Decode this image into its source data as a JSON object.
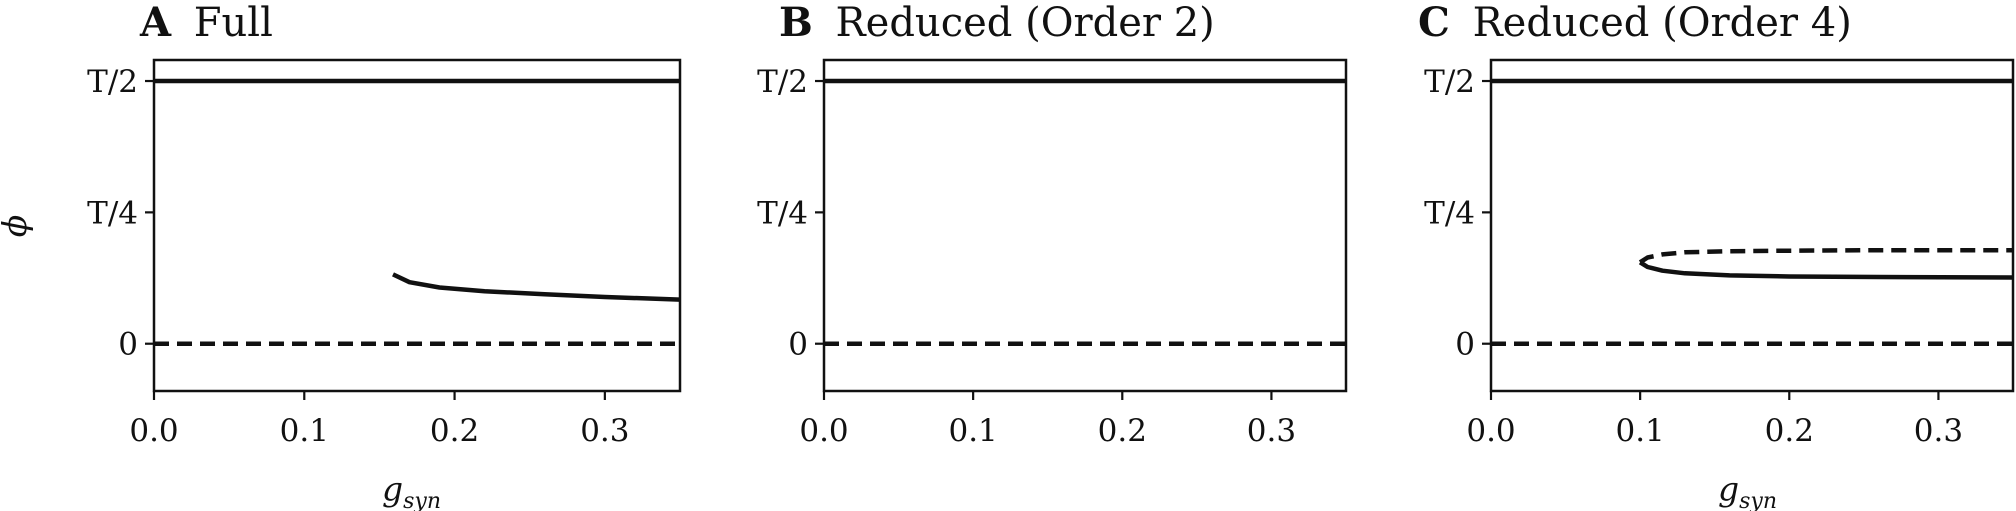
{
  "figure": {
    "panels": [
      {
        "letter": "A",
        "title": "Full"
      },
      {
        "letter": "B",
        "title": "Reduced (Order 2)"
      },
      {
        "letter": "C",
        "title": "Reduced (Order 4)"
      }
    ],
    "ylabel": "ϕ",
    "xlabel_main": "g",
    "xlabel_sub": "syn"
  },
  "chart_data": [
    {
      "type": "line",
      "title": "A Full",
      "xlabel": "g_syn",
      "ylabel": "ϕ",
      "xlim": [
        0.0,
        0.35
      ],
      "ylim": [
        -0.09,
        0.54
      ],
      "xticks": [
        0.0,
        0.1,
        0.2,
        0.3
      ],
      "xtick_labels": [
        "0.0",
        "0.1",
        "0.2",
        "0.3"
      ],
      "yticks": [
        0,
        0.25,
        0.5
      ],
      "ytick_labels": [
        "0",
        "T/4",
        "T/2"
      ],
      "show_xlabel": true,
      "show_ylabel": true,
      "grid": false,
      "series": [
        {
          "style": "solid",
          "x": [
            0.0,
            0.35
          ],
          "y": [
            0.5,
            0.5
          ]
        },
        {
          "style": "dashed",
          "x": [
            0.0,
            0.35
          ],
          "y": [
            0.0,
            0.0
          ]
        },
        {
          "style": "solid",
          "x": [
            0.159,
            0.17,
            0.19,
            0.22,
            0.26,
            0.3,
            0.35
          ],
          "y": [
            0.132,
            0.117,
            0.107,
            0.1,
            0.094,
            0.089,
            0.084
          ]
        }
      ]
    },
    {
      "type": "line",
      "title": "B Reduced (Order 2)",
      "xlabel": "",
      "ylabel": "",
      "xlim": [
        0.0,
        0.35
      ],
      "ylim": [
        -0.09,
        0.54
      ],
      "xticks": [
        0.0,
        0.1,
        0.2,
        0.3
      ],
      "xtick_labels": [
        "0.0",
        "0.1",
        "0.2",
        "0.3"
      ],
      "yticks": [
        0,
        0.25,
        0.5
      ],
      "ytick_labels": [
        "0",
        "T/4",
        "T/2"
      ],
      "show_xlabel": false,
      "show_ylabel": false,
      "grid": false,
      "series": [
        {
          "style": "solid",
          "x": [
            0.0,
            0.35
          ],
          "y": [
            0.5,
            0.5
          ]
        },
        {
          "style": "dashed",
          "x": [
            0.0,
            0.35
          ],
          "y": [
            0.0,
            0.0
          ]
        }
      ]
    },
    {
      "type": "line",
      "title": "C Reduced (Order 4)",
      "xlabel": "g_syn",
      "ylabel": "",
      "xlim": [
        0.0,
        0.35
      ],
      "ylim": [
        -0.09,
        0.54
      ],
      "xticks": [
        0.0,
        0.1,
        0.2,
        0.3
      ],
      "xtick_labels": [
        "0.0",
        "0.1",
        "0.2",
        "0.3"
      ],
      "yticks": [
        0,
        0.25,
        0.5
      ],
      "ytick_labels": [
        "0",
        "T/4",
        "T/2"
      ],
      "show_xlabel": true,
      "show_ylabel": false,
      "grid": false,
      "series": [
        {
          "style": "solid",
          "x": [
            0.0,
            0.35
          ],
          "y": [
            0.5,
            0.5
          ]
        },
        {
          "style": "dashed",
          "x": [
            0.0,
            0.35
          ],
          "y": [
            0.0,
            0.0
          ]
        },
        {
          "style": "solid",
          "x": [
            0.1,
            0.105,
            0.115,
            0.13,
            0.16,
            0.2,
            0.26,
            0.35
          ],
          "y": [
            0.155,
            0.146,
            0.139,
            0.134,
            0.13,
            0.128,
            0.127,
            0.126
          ]
        },
        {
          "style": "dashed",
          "x": [
            0.1,
            0.105,
            0.115,
            0.13,
            0.16,
            0.2,
            0.26,
            0.35
          ],
          "y": [
            0.155,
            0.164,
            0.17,
            0.174,
            0.176,
            0.177,
            0.178,
            0.178
          ]
        }
      ]
    }
  ]
}
